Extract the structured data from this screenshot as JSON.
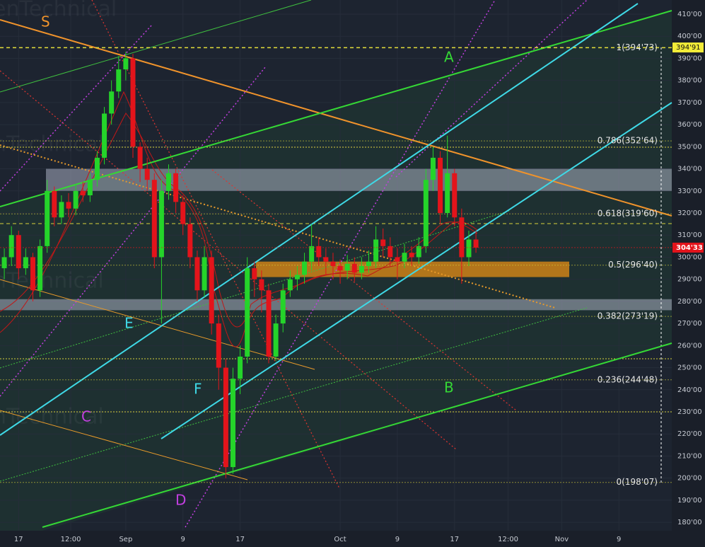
{
  "chart_data": {
    "type": "candlestick",
    "x": [
      -17,
      -16,
      -15,
      -14,
      -13,
      -12,
      -11,
      -10,
      -9,
      -8,
      -7,
      -6,
      -5,
      -4,
      -3,
      -2,
      -1,
      0,
      1,
      2,
      3,
      4,
      5,
      6,
      7,
      8,
      9,
      10,
      11,
      12,
      13,
      14,
      15,
      16,
      17,
      18,
      19,
      20,
      21,
      22,
      23,
      24,
      25,
      26,
      27,
      28,
      29,
      30,
      31,
      32,
      33,
      34,
      35,
      36,
      37,
      38,
      39,
      40,
      41,
      42,
      43,
      44,
      45,
      46,
      47,
      48,
      49
    ],
    "open": [
      295,
      300,
      310,
      295,
      300,
      285,
      305,
      330,
      318,
      325,
      322,
      330,
      328,
      335,
      345,
      365,
      375,
      385,
      390,
      350,
      340,
      335,
      300,
      330,
      338,
      325,
      315,
      300,
      285,
      300,
      270,
      250,
      205,
      245,
      255,
      295,
      290,
      285,
      255,
      270,
      285,
      290,
      292,
      298,
      305,
      300,
      298,
      296,
      294,
      297,
      293,
      296,
      298,
      308,
      305,
      300,
      298,
      302,
      300,
      305,
      335,
      345,
      320,
      338,
      318,
      300,
      308
    ],
    "high": [
      304,
      314,
      312,
      304,
      302,
      308,
      335,
      332,
      328,
      329,
      333,
      334,
      338,
      348,
      368,
      380,
      391,
      393,
      392,
      352,
      345,
      338,
      335,
      342,
      340,
      328,
      318,
      303,
      305,
      303,
      274,
      254,
      250,
      260,
      300,
      298,
      294,
      288,
      274,
      288,
      294,
      296,
      302,
      315,
      309,
      304,
      302,
      299,
      301,
      300,
      300,
      303,
      314,
      313,
      309,
      304,
      306,
      305,
      309,
      340,
      350,
      348,
      355,
      340,
      322,
      312,
      312
    ],
    "low": [
      290,
      296,
      290,
      292,
      280,
      282,
      302,
      314,
      315,
      318,
      319,
      325,
      325,
      332,
      342,
      360,
      372,
      380,
      345,
      334,
      330,
      295,
      270,
      326,
      320,
      310,
      295,
      280,
      282,
      265,
      240,
      200,
      202,
      238,
      252,
      282,
      275,
      252,
      253,
      266,
      282,
      285,
      288,
      294,
      296,
      292,
      290,
      288,
      290,
      289,
      290,
      293,
      295,
      300,
      296,
      290,
      295,
      296,
      297,
      302,
      330,
      315,
      318,
      314,
      288,
      296,
      302
    ],
    "close": [
      300,
      310,
      295,
      300,
      285,
      305,
      330,
      318,
      325,
      322,
      330,
      328,
      335,
      345,
      365,
      375,
      385,
      390,
      350,
      340,
      335,
      300,
      330,
      338,
      325,
      315,
      300,
      285,
      300,
      270,
      250,
      205,
      245,
      255,
      295,
      290,
      285,
      255,
      270,
      285,
      290,
      292,
      298,
      305,
      300,
      298,
      296,
      294,
      297,
      293,
      296,
      298,
      308,
      305,
      300,
      298,
      302,
      300,
      305,
      335,
      345,
      320,
      338,
      318,
      300,
      308,
      304.33
    ],
    "up_color": "#25d42a",
    "down_color": "#e3141b",
    "xlim": [
      -17.6,
      76.4
    ],
    "xticks": [
      {
        "value": -15,
        "label": "17"
      },
      {
        "value": -7.7,
        "label": "12:00"
      },
      {
        "value": 0,
        "label": "Sep"
      },
      {
        "value": 8,
        "label": "9"
      },
      {
        "value": 16,
        "label": "17"
      },
      {
        "value": 30,
        "label": "Oct"
      },
      {
        "value": 38,
        "label": "9"
      },
      {
        "value": 46,
        "label": "17"
      },
      {
        "value": 53.5,
        "label": "12:00"
      },
      {
        "value": 61,
        "label": "Nov"
      },
      {
        "value": 69,
        "label": "9"
      }
    ],
    "ylim": [
      176.2,
      416.4
    ],
    "yticks": [
      {
        "value": 180,
        "label": "180'00"
      },
      {
        "value": 190,
        "label": "190'00"
      },
      {
        "value": 200,
        "label": "200'00"
      },
      {
        "value": 210,
        "label": "210'00"
      },
      {
        "value": 220,
        "label": "220'00"
      },
      {
        "value": 230,
        "label": "230'00"
      },
      {
        "value": 240,
        "label": "240'00"
      },
      {
        "value": 250,
        "label": "250'00"
      },
      {
        "value": 260,
        "label": "260'00"
      },
      {
        "value": 270,
        "label": "270'00"
      },
      {
        "value": 280,
        "label": "280'00"
      },
      {
        "value": 290,
        "label": "290'00"
      },
      {
        "value": 300,
        "label": "300'00"
      },
      {
        "value": 310,
        "label": "310'00"
      },
      {
        "value": 320,
        "label": "320'00"
      },
      {
        "value": 330,
        "label": "330'00"
      },
      {
        "value": 340,
        "label": "340'00"
      },
      {
        "value": 350,
        "label": "350'00"
      },
      {
        "value": 360,
        "label": "360'00"
      },
      {
        "value": 370,
        "label": "370'00"
      },
      {
        "value": 380,
        "label": "380'00"
      },
      {
        "value": 390,
        "label": "390'00"
      },
      {
        "value": 400,
        "label": "400'00"
      },
      {
        "value": 410,
        "label": "410'00"
      }
    ],
    "grid": true,
    "fib_levels": [
      {
        "value": 394.73,
        "label": "1(394'73)"
      },
      {
        "value": 352.64,
        "label": "0.786(352'64)"
      },
      {
        "value": 319.6,
        "label": "0.618(319'60)"
      },
      {
        "value": 296.4,
        "label": "0.5(296'40)"
      },
      {
        "value": 273.19,
        "label": "0.382(273'19)"
      },
      {
        "value": 244.48,
        "label": "0.236(244'48)"
      },
      {
        "value": 198.07,
        "label": "0(198'07)"
      }
    ],
    "zones": [
      {
        "low": 330,
        "high": 340,
        "color": "rgba(200,205,225,0.45)"
      },
      {
        "low": 276,
        "high": 281,
        "color": "rgba(200,205,225,0.45)"
      },
      {
        "low": 291,
        "high": 298,
        "color": "rgba(230,140,20,0.75)"
      }
    ],
    "marker_price": {
      "value": 394.91,
      "label": "394'91"
    },
    "last_price": {
      "value": 304.33,
      "label": "304'33"
    },
    "annotations": [
      "S",
      "A",
      "B",
      "C",
      "D",
      "E",
      "F"
    ],
    "watermarks": [
      "enTechnical",
      "nTechnical",
      "nTechnical",
      "nTechnical"
    ]
  }
}
